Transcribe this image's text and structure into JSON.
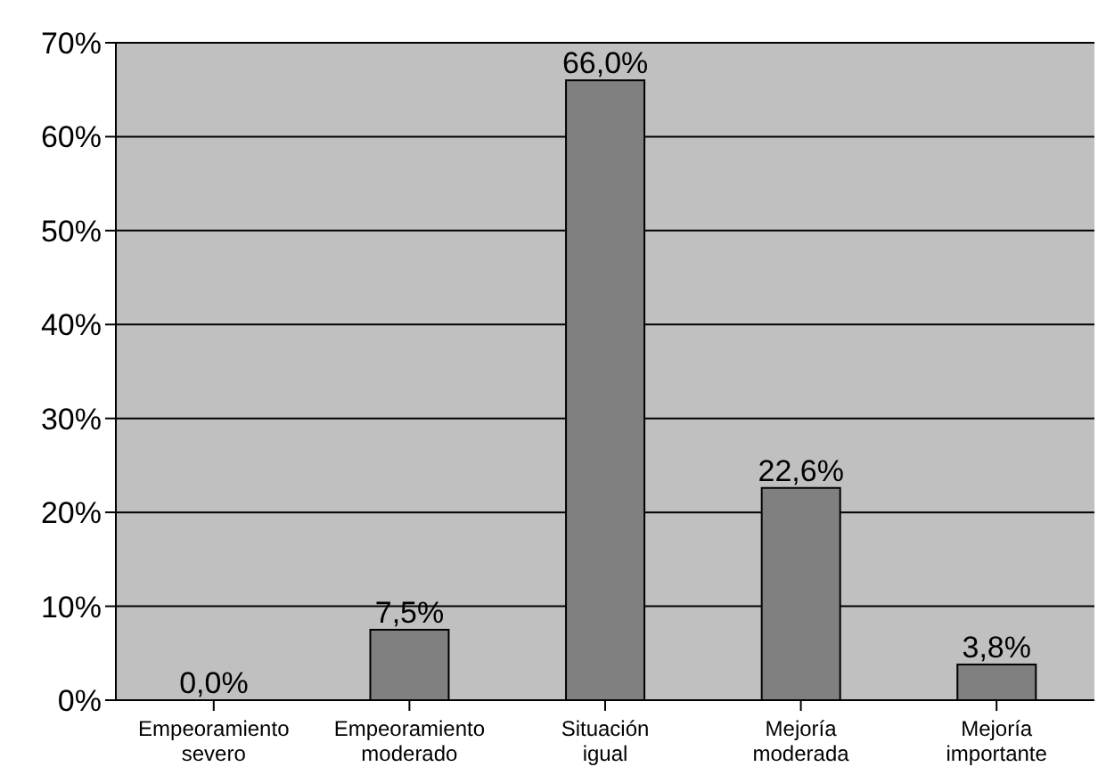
{
  "chart_data": {
    "type": "bar",
    "categories": [
      "Empeoramiento severo",
      "Empeoramiento moderado",
      "Situación igual",
      "Mejoría moderada",
      "Mejoría importante"
    ],
    "values": [
      0,
      7.5,
      66.0,
      22.6,
      3.8
    ],
    "value_labels": [
      "0,0%",
      "7,5%",
      "66,0%",
      "22,6%",
      "3,8%"
    ],
    "color": "#808080",
    "ylim": [
      0,
      70
    ],
    "yticks": [
      {
        "value": 0,
        "label": "0%"
      },
      {
        "value": 10,
        "label": "10%"
      },
      {
        "value": 20,
        "label": "20%"
      },
      {
        "value": 30,
        "label": "30%"
      },
      {
        "value": 40,
        "label": "40%"
      },
      {
        "value": 50,
        "label": "50%"
      },
      {
        "value": 60,
        "label": "60%"
      },
      {
        "value": 70,
        "label": "70%"
      }
    ],
    "grid": "y",
    "legend": false
  }
}
